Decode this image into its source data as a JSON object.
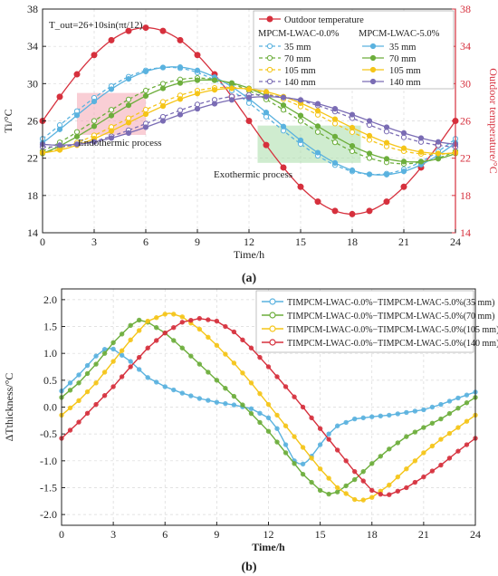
{
  "chart_data": [
    {
      "panel_label": "(a)",
      "type": "line",
      "equation": "T_out=26+10sin(πt/12)",
      "xlabel": "Time/h",
      "ylabel": "Ti/°C",
      "ylabel_right": "Outdoor temperature/°C",
      "xlim": [
        0,
        24
      ],
      "ylim": [
        14,
        38
      ],
      "ylim_right": [
        14,
        38
      ],
      "x_ticks": [
        0,
        3,
        6,
        9,
        12,
        15,
        18,
        21,
        24
      ],
      "y_ticks": [
        14,
        18,
        22,
        26,
        30,
        34,
        38
      ],
      "y_ticks_right": [
        14,
        18,
        22,
        26,
        30,
        34,
        38
      ],
      "grid": true,
      "legend": {
        "placement": "top-right",
        "outdoor_label": "Outdoor temperature",
        "group_left": "MPCM-LWAC-0.0%",
        "group_right": "MPCM-LWAC-5.0%",
        "entry_labels": [
          "35 mm",
          "70 mm",
          "105 mm",
          "140 mm"
        ]
      },
      "annotations": [
        {
          "text": "Endothermic process",
          "x_range": [
            2,
            6
          ],
          "y_range": [
            24.5,
            29
          ],
          "color": "#f4a6b3"
        },
        {
          "text": "Exothermic process",
          "x_range": [
            12.5,
            18.5
          ],
          "y_range": [
            21.5,
            25.5
          ],
          "color": "#a8dca8"
        }
      ],
      "series": [
        {
          "name": "Outdoor temperature",
          "axis": "right",
          "color": "#d6303d",
          "marker": "circle",
          "dashed": false,
          "model": {
            "kind": "outdoor",
            "mean": 26,
            "amp": 10,
            "period": 24
          }
        },
        {
          "name": "35 mm",
          "group": "MPCM-LWAC-0.0%",
          "color": "#5ab2df",
          "dashed": true,
          "marker": "circle",
          "model": {
            "kind": "sine",
            "mean": 26.0,
            "amp": 5.75,
            "peak": 7.3
          }
        },
        {
          "name": "70 mm",
          "group": "MPCM-LWAC-0.0%",
          "color": "#6dae3c",
          "dashed": true,
          "marker": "circle",
          "model": {
            "kind": "sine",
            "mean": 26.0,
            "amp": 4.6,
            "peak": 9.0
          }
        },
        {
          "name": "105 mm",
          "group": "MPCM-LWAC-0.0%",
          "color": "#f5c518",
          "dashed": true,
          "marker": "circle",
          "model": {
            "kind": "sine",
            "mean": 26.0,
            "amp": 3.6,
            "peak": 10.7
          }
        },
        {
          "name": "140 mm",
          "group": "MPCM-LWAC-0.0%",
          "color": "#7a6cb4",
          "dashed": true,
          "marker": "circle",
          "model": {
            "kind": "sine",
            "mean": 26.0,
            "amp": 2.8,
            "peak": 12.4
          }
        },
        {
          "name": "35 mm",
          "group": "MPCM-LWAC-5.0%",
          "color": "#5ab2df",
          "dashed": false,
          "marker": "circle",
          "model": {
            "kind": "sine",
            "mean": 26.0,
            "amp": 5.8,
            "peak": 7.6
          }
        },
        {
          "name": "70 mm",
          "group": "MPCM-LWAC-5.0%",
          "color": "#6dae3c",
          "dashed": false,
          "marker": "circle",
          "model": {
            "kind": "sine",
            "mean": 26.0,
            "amp": 4.4,
            "peak": 9.5
          }
        },
        {
          "name": "105 mm",
          "group": "MPCM-LWAC-5.0%",
          "color": "#f5c518",
          "dashed": false,
          "marker": "circle",
          "model": {
            "kind": "sine",
            "mean": 26.0,
            "amp": 3.5,
            "peak": 11.2
          }
        },
        {
          "name": "140 mm",
          "group": "MPCM-LWAC-5.0%",
          "color": "#7a6cb4",
          "dashed": false,
          "marker": "circle",
          "model": {
            "kind": "sine",
            "mean": 26.0,
            "amp": 2.6,
            "peak": 13.0
          }
        }
      ]
    },
    {
      "panel_label": "(b)",
      "type": "line",
      "xlabel": "Time/h",
      "ylabel": "ΔTthickness/°C",
      "xlim": [
        0,
        24
      ],
      "ylim": [
        -2.2,
        2.2
      ],
      "x_ticks": [
        0,
        3,
        6,
        9,
        12,
        15,
        18,
        21,
        24
      ],
      "y_ticks": [
        -2.0,
        -1.5,
        -1.0,
        -0.5,
        0.0,
        0.5,
        1.0,
        1.5,
        2.0
      ],
      "grid": true,
      "legend": {
        "placement": "top-right"
      },
      "series": [
        {
          "name": "TIMPCM-LWAC-0.0%−TIMPCM-LWAC-5.0%(35 mm)",
          "thickness": "35 mm",
          "color": "#5ab2df",
          "points": [
            [
              0,
              0.3
            ],
            [
              1,
              0.6
            ],
            [
              2,
              0.95
            ],
            [
              2.6,
              1.1
            ],
            [
              3,
              1.08
            ],
            [
              4,
              0.85
            ],
            [
              5,
              0.55
            ],
            [
              6,
              0.38
            ],
            [
              7,
              0.26
            ],
            [
              8,
              0.16
            ],
            [
              9,
              0.09
            ],
            [
              10,
              0.04
            ],
            [
              11,
              -0.03
            ],
            [
              12,
              -0.2
            ],
            [
              12.5,
              -0.4
            ],
            [
              13,
              -0.7
            ],
            [
              13.5,
              -1.0
            ],
            [
              13.9,
              -1.08
            ],
            [
              14.3,
              -1.0
            ],
            [
              15,
              -0.7
            ],
            [
              15.5,
              -0.5
            ],
            [
              16,
              -0.35
            ],
            [
              17,
              -0.22
            ],
            [
              18,
              -0.18
            ],
            [
              19,
              -0.15
            ],
            [
              20,
              -0.1
            ],
            [
              21,
              -0.05
            ],
            [
              22,
              0.05
            ],
            [
              23,
              0.17
            ],
            [
              24,
              0.28
            ]
          ]
        },
        {
          "name": "TIMPCM-LWAC-0.0%−TIMPCM-LWAC-5.0%(70 mm)",
          "thickness": "70 mm",
          "color": "#6dae3c",
          "points": [
            [
              0,
              0.18
            ],
            [
              1,
              0.45
            ],
            [
              2,
              0.8
            ],
            [
              3,
              1.2
            ],
            [
              4,
              1.52
            ],
            [
              4.5,
              1.62
            ],
            [
              5,
              1.58
            ],
            [
              6,
              1.38
            ],
            [
              7,
              1.1
            ],
            [
              8,
              0.8
            ],
            [
              9,
              0.5
            ],
            [
              10,
              0.2
            ],
            [
              11,
              -0.12
            ],
            [
              12,
              -0.45
            ],
            [
              13,
              -0.85
            ],
            [
              14,
              -1.25
            ],
            [
              15,
              -1.55
            ],
            [
              15.5,
              -1.62
            ],
            [
              16,
              -1.58
            ],
            [
              17,
              -1.35
            ],
            [
              18,
              -1.05
            ],
            [
              19,
              -0.78
            ],
            [
              20,
              -0.55
            ],
            [
              21,
              -0.38
            ],
            [
              22,
              -0.22
            ],
            [
              23,
              -0.02
            ],
            [
              24,
              0.18
            ]
          ]
        },
        {
          "name": "TIMPCM-LWAC-0.0%−TIMPCM-LWAC-5.0%(105 mm)",
          "thickness": "105 mm",
          "color": "#f5c518",
          "points": [
            [
              0,
              -0.15
            ],
            [
              1,
              0.12
            ],
            [
              2,
              0.45
            ],
            [
              3,
              0.85
            ],
            [
              4,
              1.25
            ],
            [
              5,
              1.6
            ],
            [
              6,
              1.73
            ],
            [
              6.3,
              1.75
            ],
            [
              7,
              1.68
            ],
            [
              8,
              1.45
            ],
            [
              9,
              1.15
            ],
            [
              10,
              0.82
            ],
            [
              11,
              0.45
            ],
            [
              12,
              0.05
            ],
            [
              13,
              -0.35
            ],
            [
              14,
              -0.75
            ],
            [
              15,
              -1.15
            ],
            [
              16,
              -1.5
            ],
            [
              17,
              -1.72
            ],
            [
              17.3,
              -1.75
            ],
            [
              18,
              -1.68
            ],
            [
              19,
              -1.45
            ],
            [
              20,
              -1.15
            ],
            [
              21,
              -0.85
            ],
            [
              22,
              -0.6
            ],
            [
              23,
              -0.38
            ],
            [
              24,
              -0.15
            ]
          ]
        },
        {
          "name": "TIMPCM-LWAC-0.0%−TIMPCM-LWAC-5.0%(140 mm)",
          "thickness": "140 mm",
          "color": "#d6303d",
          "points": [
            [
              0,
              -0.58
            ],
            [
              1,
              -0.28
            ],
            [
              2,
              0.05
            ],
            [
              3,
              0.38
            ],
            [
              4,
              0.75
            ],
            [
              5,
              1.1
            ],
            [
              6,
              1.38
            ],
            [
              7,
              1.58
            ],
            [
              8,
              1.65
            ],
            [
              9,
              1.6
            ],
            [
              10,
              1.4
            ],
            [
              11,
              1.1
            ],
            [
              12,
              0.75
            ],
            [
              13,
              0.38
            ],
            [
              14,
              0.0
            ],
            [
              15,
              -0.4
            ],
            [
              16,
              -0.8
            ],
            [
              17,
              -1.2
            ],
            [
              18,
              -1.55
            ],
            [
              18.7,
              -1.65
            ],
            [
              19,
              -1.63
            ],
            [
              20,
              -1.5
            ],
            [
              21,
              -1.3
            ],
            [
              22,
              -1.08
            ],
            [
              23,
              -0.82
            ],
            [
              24,
              -0.58
            ]
          ]
        }
      ]
    }
  ],
  "colors": {
    "outdoor_axis": "#d6303d",
    "axis": "#222222",
    "grid": "#d9d9d9"
  }
}
